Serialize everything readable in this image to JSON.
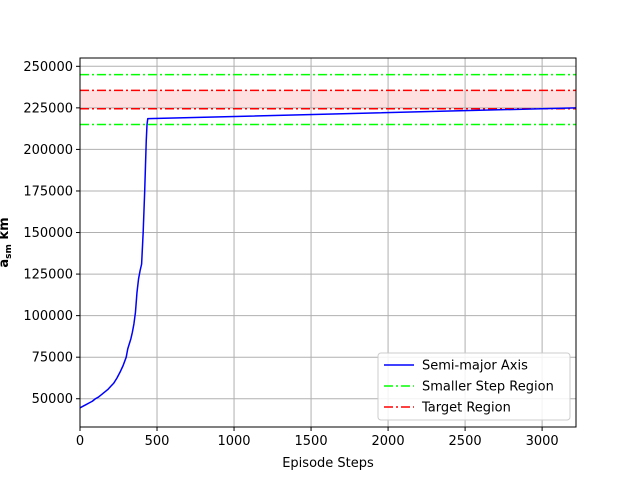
{
  "chart_data": {
    "type": "line",
    "xlabel": "Episode Steps",
    "ylabel_main": "a",
    "ylabel_sub": "sm",
    "ylabel_unit": "km",
    "xlim": [
      0,
      3220
    ],
    "ylim": [
      33000,
      255000
    ],
    "xticks": [
      0,
      500,
      1000,
      1500,
      2000,
      2500,
      3000
    ],
    "yticks": [
      50000,
      75000,
      100000,
      125000,
      150000,
      175000,
      200000,
      225000,
      250000
    ],
    "grid": true,
    "legend_position": "lower-right",
    "series": [
      {
        "name": "Semi-major Axis",
        "color": "#0000ff",
        "style": "solid",
        "x": [
          0,
          20,
          40,
          60,
          80,
          100,
          120,
          140,
          160,
          180,
          200,
          220,
          240,
          260,
          280,
          300,
          310,
          320,
          330,
          340,
          350,
          360,
          370,
          380,
          390,
          400,
          410,
          420,
          425,
          430,
          435,
          440,
          445,
          3220
        ],
        "y": [
          44500,
          45500,
          46500,
          47500,
          48500,
          50000,
          51000,
          52500,
          54000,
          55500,
          57500,
          59500,
          62500,
          66000,
          70000,
          75000,
          80000,
          83000,
          86000,
          90000,
          95000,
          102000,
          114000,
          122000,
          127000,
          131000,
          150000,
          175000,
          190000,
          205000,
          215000,
          218500,
          218500,
          225000
        ]
      }
    ],
    "reference_lines": [
      {
        "name": "Smaller Step Region",
        "color": "#00ff00",
        "style": "dashdot",
        "values": [
          245000,
          215000
        ]
      },
      {
        "name": "Target Region",
        "color": "#ff0000",
        "style": "dashdot",
        "values": [
          235500,
          224500
        ]
      }
    ],
    "target_band_color": "#ffe0e0"
  }
}
